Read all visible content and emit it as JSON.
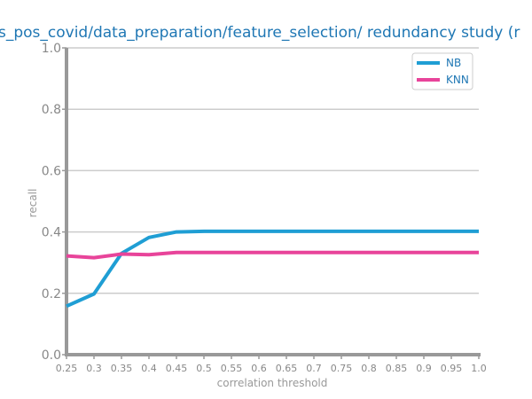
{
  "chart_data": {
    "type": "line",
    "title": "s_pos_covid/data_preparation/feature_selection/ redundancy study (r",
    "xlabel": "correlation threshold",
    "ylabel": "recall",
    "x": [
      0.25,
      0.3,
      0.35,
      0.4,
      0.45,
      0.5,
      0.55,
      0.6,
      0.65,
      0.7,
      0.75,
      0.8,
      0.85,
      0.9,
      0.95,
      1.0
    ],
    "x_tick_labels": [
      "0.25",
      "0.3",
      "0.35",
      "0.4",
      "0.45",
      "0.5",
      "0.55",
      "0.6",
      "0.65",
      "0.7",
      "0.75",
      "0.8",
      "0.85",
      "0.9",
      "0.95",
      "1.0"
    ],
    "y_tick_labels": [
      "0.0",
      "0.2",
      "0.4",
      "0.6",
      "0.8",
      "1.0"
    ],
    "y_ticks": [
      0.0,
      0.2,
      0.4,
      0.6,
      0.8,
      1.0
    ],
    "xlim": [
      0.25,
      1.0
    ],
    "ylim": [
      0.0,
      1.0
    ],
    "grid": "horizontal",
    "legend_position": "top-right",
    "series": [
      {
        "name": "NB",
        "color": "#1f9ed4",
        "values": [
          0.158,
          0.198,
          0.33,
          0.382,
          0.4,
          0.402,
          0.402,
          0.402,
          0.402,
          0.402,
          0.402,
          0.402,
          0.402,
          0.402,
          0.402,
          0.402
        ]
      },
      {
        "name": "KNN",
        "color": "#e8449a",
        "values": [
          0.322,
          0.316,
          0.328,
          0.326,
          0.333,
          0.333,
          0.333,
          0.333,
          0.333,
          0.333,
          0.333,
          0.333,
          0.333,
          0.333,
          0.333,
          0.333
        ]
      }
    ]
  }
}
